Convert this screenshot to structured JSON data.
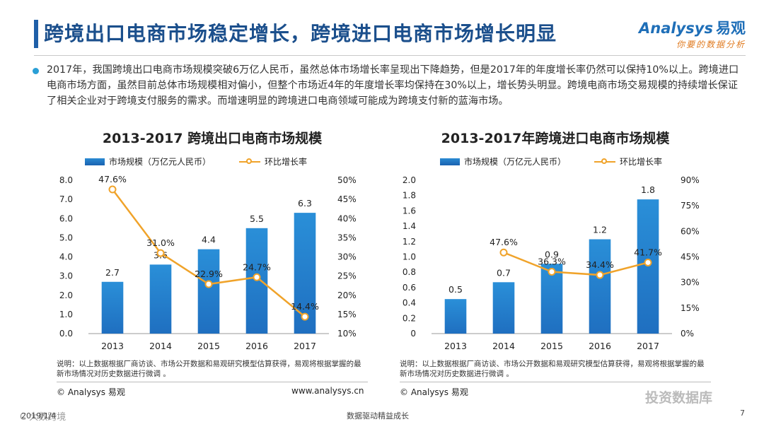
{
  "header": {
    "title": "跨境出口电商市场稳定增长，跨境进口电商市场增长明显",
    "logo_text": "nalysys",
    "logo_letter": "A",
    "logo_cn": "易观",
    "logo_slogan": "你要的数据分析"
  },
  "summary": "2017年，我国跨境出口电商市场规模突破6万亿人民币，虽然总体市场增长率呈现出下降趋势，但是2017年的年度增长率仍然可以保持10%以上。跨境进口电商市场方面，虽然目前总体市场规模相对偏小，但整个市场近4年的年度增长率均保持在30%以上，增长势头明显。跨境电商市场交易规模的持续增长保证了相关企业对于跨境支付服务的需求。而增速明显的跨境进口电商领域可能成为跨境支付新的蓝海市场。",
  "colors": {
    "bar": "#1f6fc0",
    "line": "#f0a32a",
    "title": "#1b4f8c"
  },
  "chart_data": [
    {
      "type": "bar",
      "title": "2013-2017 跨境出口电商市场规模",
      "legend": {
        "bar": "市场规模（万亿元人民币）",
        "line": "环比增长率"
      },
      "categories": [
        "2013",
        "2014",
        "2015",
        "2016",
        "2017"
      ],
      "series": [
        {
          "name": "市场规模（万亿元人民币）",
          "kind": "bar",
          "axis": "left",
          "values": [
            2.7,
            3.6,
            4.4,
            5.5,
            6.3
          ],
          "labels": [
            "2.7",
            "3.6",
            "4.4",
            "5.5",
            "6.3"
          ]
        },
        {
          "name": "环比增长率",
          "kind": "line",
          "axis": "right",
          "values": [
            47.6,
            31.0,
            22.9,
            24.7,
            14.4
          ],
          "labels": [
            "47.6%",
            "31.0%",
            "22.9%",
            "24.7%",
            "14.4%"
          ]
        }
      ],
      "ylim": [
        0,
        8
      ],
      "y2lim": [
        10,
        50
      ],
      "yticks": [
        "0.0",
        "1.0",
        "2.0",
        "3.0",
        "4.0",
        "5.0",
        "6.0",
        "7.0",
        "8.0"
      ],
      "y2ticks": [
        "10%",
        "15%",
        "20%",
        "25%",
        "30%",
        "35%",
        "40%",
        "45%",
        "50%"
      ],
      "note": "说明：以上数据根据厂商访谈、市场公开数据和易观研究模型估算获得，易观将根据掌握的最新市场情况对历史数据进行微调 。",
      "source_left": "© Analysys 易观",
      "source_right": "www.analysys.cn"
    },
    {
      "type": "bar",
      "title": "2013-2017年跨境进口电商市场规模",
      "legend": {
        "bar": "市场规模（万亿元人民币）",
        "line": "环比增长率"
      },
      "categories": [
        "2013",
        "2014",
        "2015",
        "2016",
        "2017"
      ],
      "series": [
        {
          "name": "市场规模（万亿元人民币）",
          "kind": "bar",
          "axis": "left",
          "values": [
            0.45,
            0.67,
            0.91,
            1.23,
            1.75
          ],
          "labels": [
            "0.5",
            "0.7",
            "0.9",
            "1.2",
            "1.8"
          ]
        },
        {
          "name": "环比增长率",
          "kind": "line",
          "axis": "right",
          "values": [
            null,
            47.6,
            36.3,
            34.4,
            41.7
          ],
          "labels": [
            "",
            "47.6%",
            "36.3%",
            "34.4%",
            "41.7%"
          ]
        }
      ],
      "ylim": [
        0,
        2.0
      ],
      "y2lim": [
        0,
        90
      ],
      "yticks": [
        "0",
        "0.2",
        "0.4",
        "0.6",
        "0.8",
        "1.0",
        "1.2",
        "1.4",
        "1.6",
        "1.8",
        "2.0"
      ],
      "y2ticks": [
        "0%",
        "15%",
        "30%",
        "45%",
        "60%",
        "75%",
        "90%"
      ],
      "note": "说明：以上数据根据厂商访谈、市场公开数据和易观研究模型估算获得，易观将根据掌握的最新市场情况对历史数据进行微调 。",
      "source_left": "© Analysys 易观",
      "source_right": ""
    }
  ],
  "footer": {
    "date": "2019/1/4",
    "slogan": "数据驱动精益成长",
    "page": "7",
    "wm_left": "C 大数跨境",
    "wm_right": "投资数据库"
  }
}
